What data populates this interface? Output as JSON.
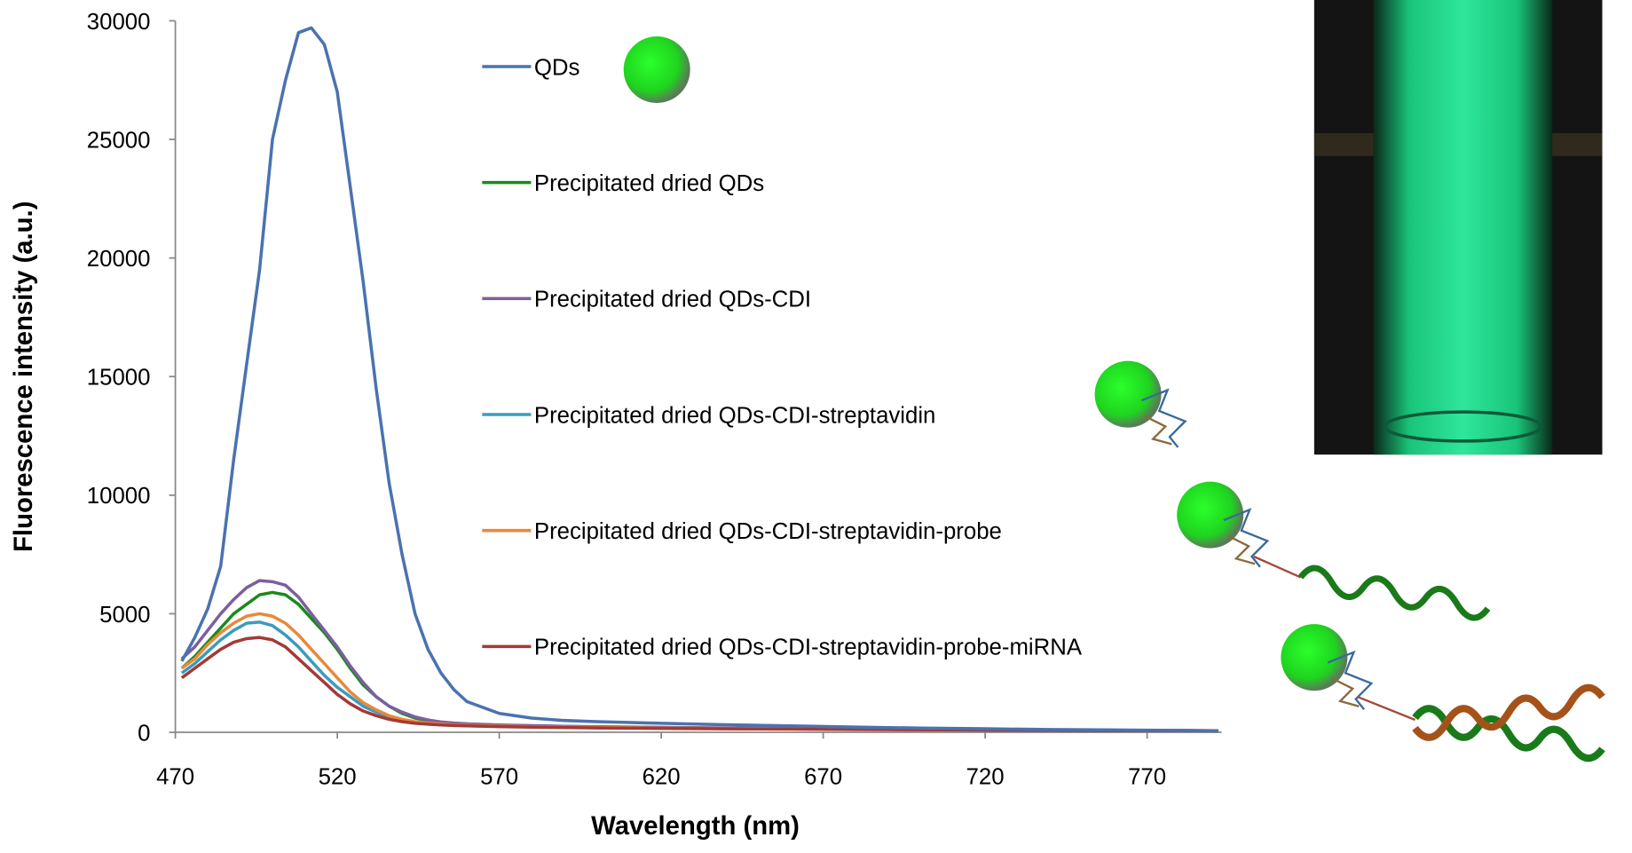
{
  "chart_data": {
    "type": "line",
    "x_label": "Wavelength (nm)",
    "y_label": "Fluorescence intensity (a.u.)",
    "x": [
      472,
      476,
      480,
      484,
      488,
      492,
      496,
      500,
      504,
      508,
      512,
      516,
      520,
      524,
      528,
      532,
      536,
      540,
      544,
      548,
      552,
      556,
      560,
      570,
      580,
      590,
      600,
      620,
      640,
      660,
      680,
      700,
      720,
      740,
      760,
      780,
      792
    ],
    "series": [
      {
        "name": "QDs",
        "color": "#4a72b0",
        "values": [
          3000,
          4000,
          5200,
          7000,
          11500,
          15500,
          19500,
          25000,
          27500,
          29500,
          29700,
          29000,
          27000,
          23000,
          19000,
          14500,
          10500,
          7500,
          5000,
          3500,
          2500,
          1800,
          1300,
          800,
          600,
          500,
          450,
          380,
          320,
          270,
          220,
          180,
          150,
          120,
          100,
          80,
          60
        ]
      },
      {
        "name": "Precipitated dried QDs",
        "color": "#1a8a1a",
        "values": [
          2700,
          3200,
          3800,
          4400,
          5000,
          5400,
          5800,
          5900,
          5800,
          5400,
          4800,
          4200,
          3500,
          2700,
          2000,
          1500,
          1100,
          800,
          600,
          500,
          420,
          380,
          350,
          300,
          270,
          250,
          230,
          200,
          180,
          160,
          140,
          120,
          100,
          90,
          80,
          70,
          60
        ]
      },
      {
        "name": "Precipitated dried QDs-CDI",
        "color": "#7c5fa0",
        "values": [
          3100,
          3600,
          4300,
          5000,
          5600,
          6100,
          6400,
          6350,
          6200,
          5700,
          5000,
          4300,
          3600,
          2800,
          2100,
          1500,
          1100,
          850,
          650,
          520,
          440,
          390,
          360,
          310,
          280,
          255,
          235,
          205,
          185,
          165,
          145,
          125,
          105,
          95,
          85,
          75,
          65
        ]
      },
      {
        "name": "Precipitated dried QDs-CDI-streptavidin",
        "color": "#3b9bbf",
        "values": [
          2500,
          2900,
          3400,
          3900,
          4300,
          4600,
          4650,
          4500,
          4100,
          3600,
          3000,
          2400,
          1900,
          1500,
          1100,
          850,
          650,
          500,
          420,
          370,
          330,
          300,
          280,
          250,
          230,
          210,
          195,
          175,
          160,
          145,
          130,
          115,
          100,
          90,
          80,
          70,
          60
        ]
      },
      {
        "name": "Precipitated dried QDs-CDI-streptavidin-probe",
        "color": "#e8893a",
        "values": [
          2700,
          3100,
          3700,
          4200,
          4600,
          4900,
          5000,
          4900,
          4600,
          4100,
          3500,
          2900,
          2300,
          1700,
          1250,
          950,
          700,
          550,
          450,
          390,
          350,
          320,
          300,
          265,
          240,
          220,
          205,
          180,
          165,
          150,
          135,
          120,
          105,
          95,
          85,
          75,
          65
        ]
      },
      {
        "name": "Precipitated dried QDs-CDI-streptavidin-probe-miRNA",
        "color": "#a33a35",
        "values": [
          2300,
          2700,
          3100,
          3500,
          3800,
          3950,
          4000,
          3900,
          3600,
          3100,
          2600,
          2100,
          1600,
          1200,
          900,
          700,
          550,
          450,
          380,
          340,
          310,
          290,
          270,
          240,
          220,
          200,
          185,
          165,
          150,
          135,
          120,
          110,
          95,
          85,
          75,
          65,
          55
        ]
      }
    ],
    "xlim": [
      470,
      793
    ],
    "ylim": [
      0,
      30000
    ],
    "xticks": [
      470,
      520,
      570,
      620,
      670,
      720,
      770
    ],
    "yticks": [
      0,
      5000,
      10000,
      15000,
      20000,
      25000,
      30000
    ],
    "grid": false
  }
}
